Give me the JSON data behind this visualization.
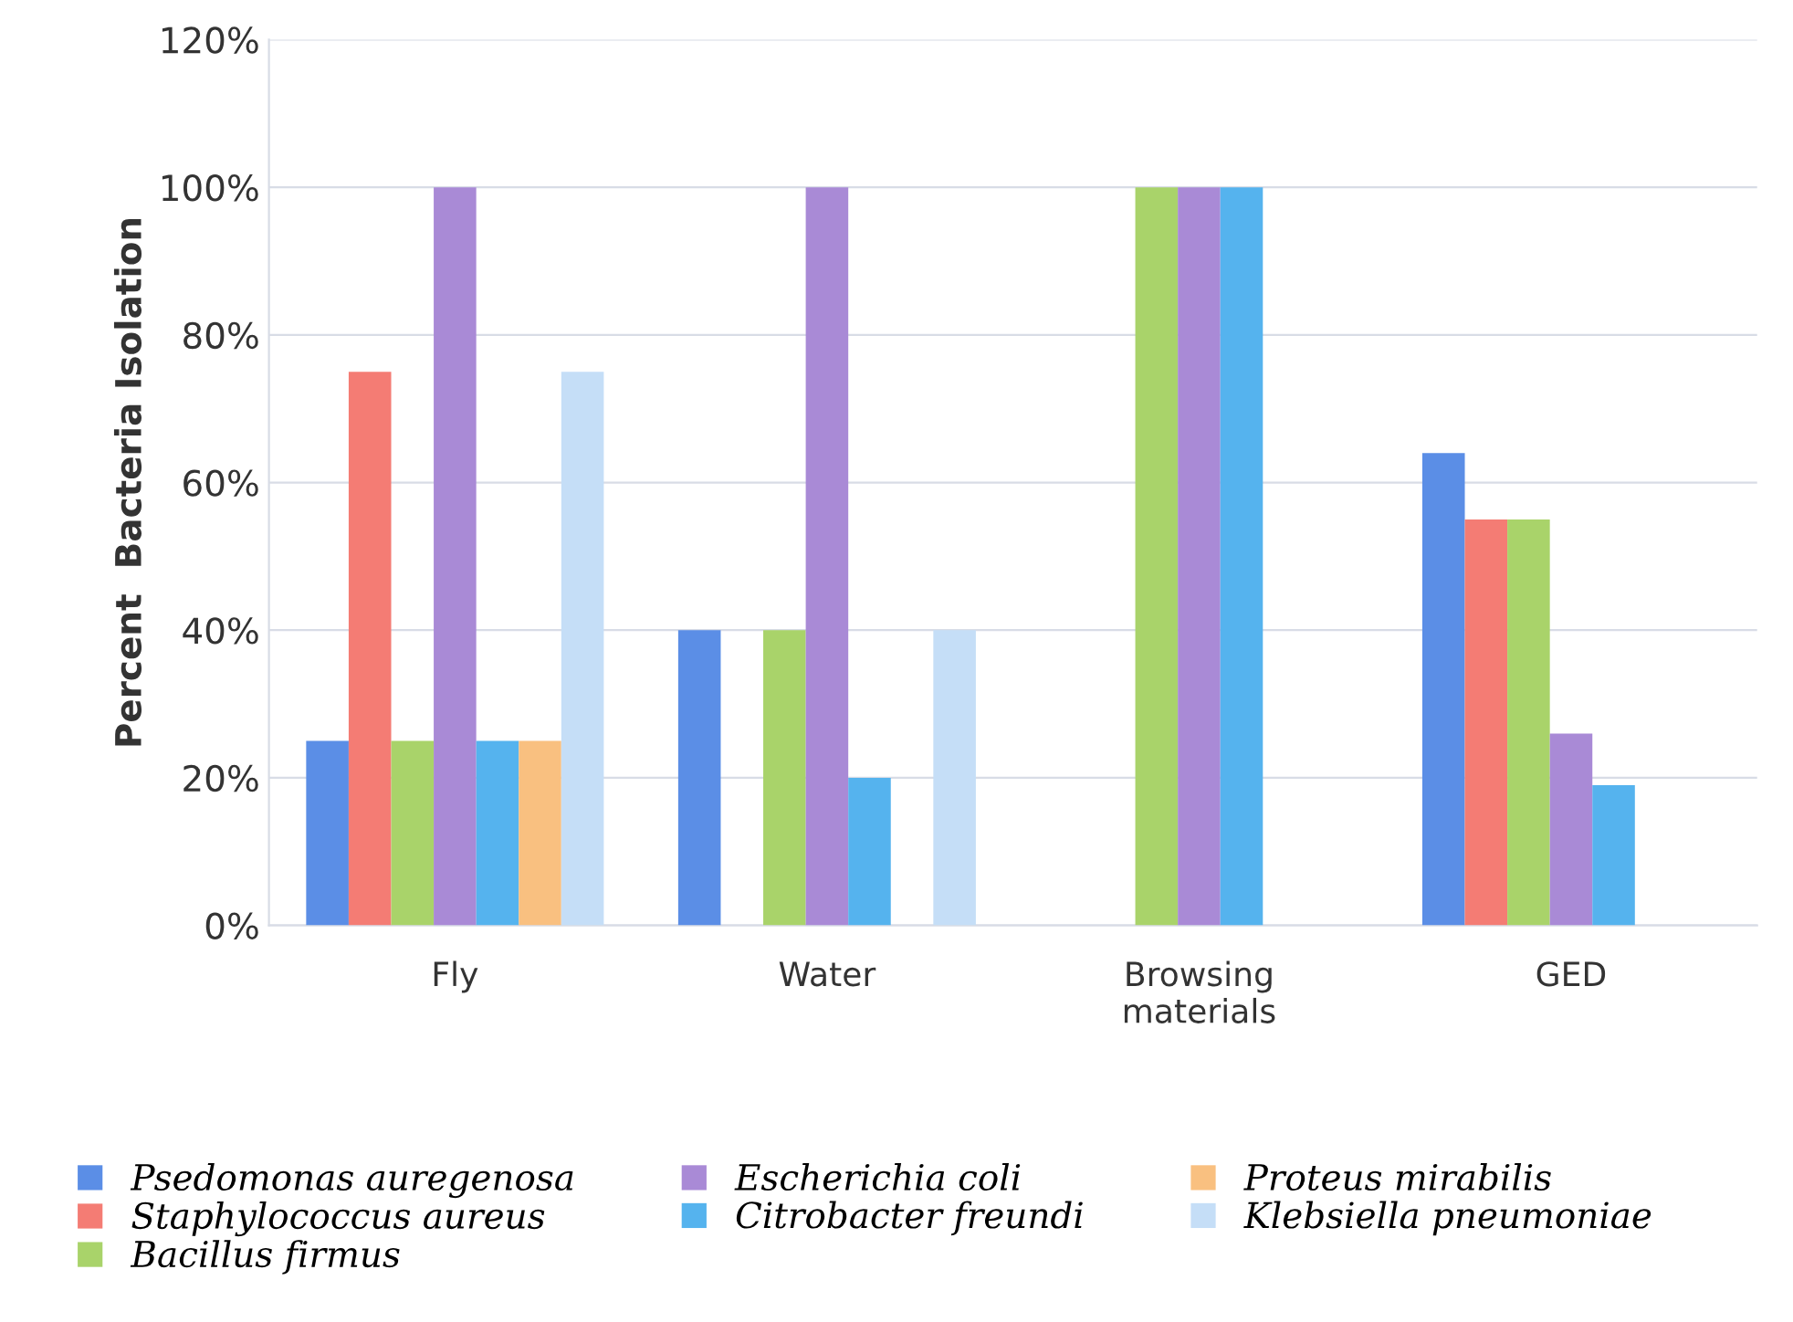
{
  "chart_data": {
    "type": "bar",
    "ylabel": "Percent  Bacteria Isolation",
    "categories": [
      "Fly",
      "Water",
      "Browsing\nmaterials",
      "GED"
    ],
    "series": [
      {
        "name": "Psedomonas auregenosa",
        "color": "#5b8ee6",
        "values": [
          25,
          40,
          0,
          64
        ]
      },
      {
        "name": "Staphylococcus aureus",
        "color": "#f47c74",
        "values": [
          75,
          0,
          0,
          55
        ]
      },
      {
        "name": "Bacillus firmus",
        "color": "#a9d36a",
        "values": [
          25,
          40,
          100,
          55
        ]
      },
      {
        "name": "Escherichia coli",
        "color": "#a98ad6",
        "values": [
          100,
          100,
          100,
          26
        ]
      },
      {
        "name": "Citrobacter freundi",
        "color": "#55b3ee",
        "values": [
          25,
          20,
          100,
          19
        ]
      },
      {
        "name": "Proteus mirabilis",
        "color": "#f9c080",
        "values": [
          25,
          0,
          0,
          null
        ]
      },
      {
        "name": "Klebsiella pneumoniae",
        "color": "#c5def7",
        "values": [
          75,
          40,
          0,
          null
        ]
      }
    ],
    "ylim": [
      0,
      120
    ],
    "yticks": [
      {
        "value": 0,
        "label": "0%"
      },
      {
        "value": 20,
        "label": "20%"
      },
      {
        "value": 40,
        "label": "40%"
      },
      {
        "value": 60,
        "label": "60%"
      },
      {
        "value": 80,
        "label": "80%"
      },
      {
        "value": 100,
        "label": "100%"
      },
      {
        "value": 120,
        "label": "120%"
      }
    ],
    "grid": "y",
    "legend": "bottom"
  }
}
